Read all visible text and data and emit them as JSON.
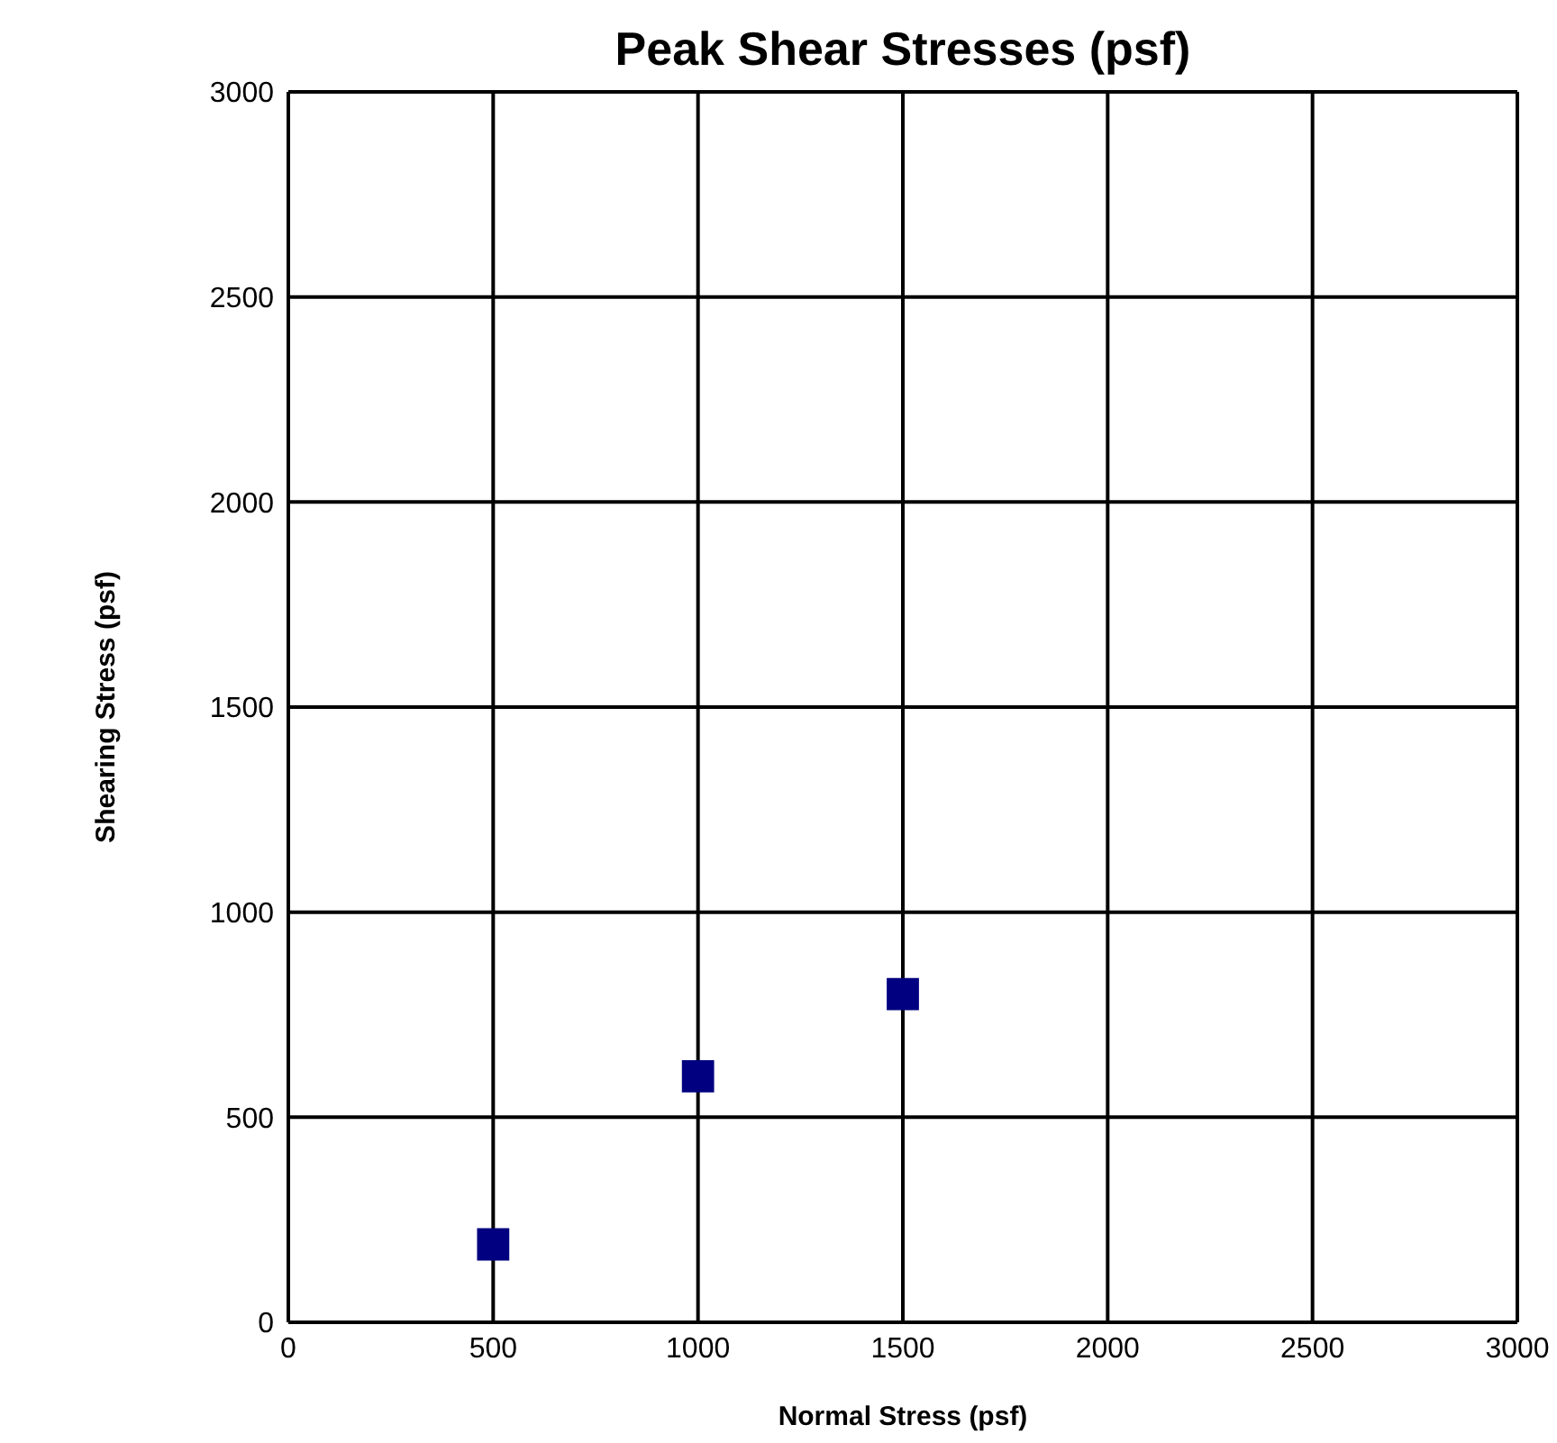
{
  "chart_data": {
    "type": "scatter",
    "title": "Peak Shear Stresses (psf)",
    "xlabel": "Normal Stress (psf)",
    "ylabel": "Shearing Stress (psf)",
    "x": [
      500,
      1000,
      1500
    ],
    "series": [
      {
        "color": "#000080",
        "values": [
          190,
          600,
          800
        ]
      }
    ],
    "xlim": [
      0,
      3000
    ],
    "xticks": [
      0,
      500,
      1000,
      1500,
      2000,
      2500,
      3000
    ],
    "ylim": [
      0,
      3000
    ],
    "yticks": [
      0,
      500,
      1000,
      1500,
      2000,
      2500,
      3000
    ],
    "grid": true,
    "marker": "square",
    "legend": false
  }
}
